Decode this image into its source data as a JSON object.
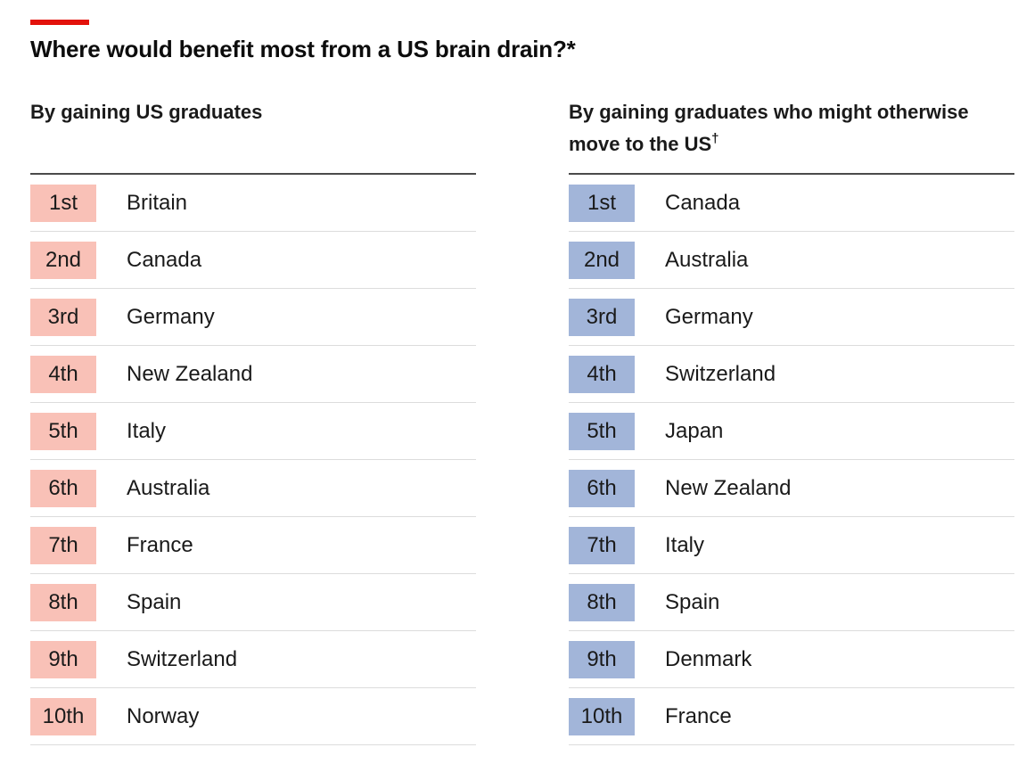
{
  "title": "Where would benefit most from a US brain drain?*",
  "colors": {
    "accent": "#e3120b",
    "left_rank_fill": "#f9c1b7",
    "right_rank_fill": "#a2b5d9"
  },
  "chart_data": [
    {
      "type": "table",
      "title": "By gaining US graduates",
      "columns": [
        "rank",
        "country"
      ],
      "rows": [
        {
          "rank": "1st",
          "country": "Britain"
        },
        {
          "rank": "2nd",
          "country": "Canada"
        },
        {
          "rank": "3rd",
          "country": "Germany"
        },
        {
          "rank": "4th",
          "country": "New Zealand"
        },
        {
          "rank": "5th",
          "country": "Italy"
        },
        {
          "rank": "6th",
          "country": "Australia"
        },
        {
          "rank": "7th",
          "country": "France"
        },
        {
          "rank": "8th",
          "country": "Spain"
        },
        {
          "rank": "9th",
          "country": "Switzerland"
        },
        {
          "rank": "10th",
          "country": "Norway"
        }
      ]
    },
    {
      "type": "table",
      "title": "By gaining graduates who might otherwise move to the US",
      "title_sup": "†",
      "columns": [
        "rank",
        "country"
      ],
      "rows": [
        {
          "rank": "1st",
          "country": "Canada"
        },
        {
          "rank": "2nd",
          "country": "Australia"
        },
        {
          "rank": "3rd",
          "country": "Germany"
        },
        {
          "rank": "4th",
          "country": "Switzerland"
        },
        {
          "rank": "5th",
          "country": "Japan"
        },
        {
          "rank": "6th",
          "country": "New Zealand"
        },
        {
          "rank": "7th",
          "country": "Italy"
        },
        {
          "rank": "8th",
          "country": "Spain"
        },
        {
          "rank": "9th",
          "country": "Denmark"
        },
        {
          "rank": "10th",
          "country": "France"
        }
      ]
    }
  ]
}
